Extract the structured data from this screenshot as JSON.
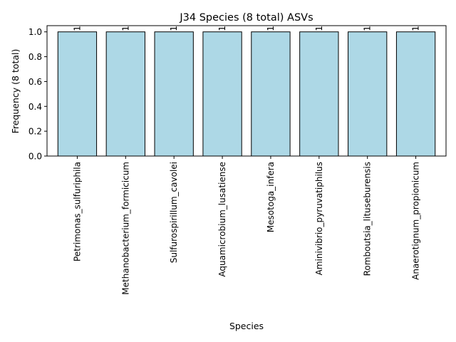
{
  "chart_data": {
    "type": "bar",
    "title": "J34 Species (8 total) ASVs",
    "xlabel": "Species",
    "ylabel": "Frequency (8 total)",
    "categories": [
      "Petrimonas_sulfuriphila",
      "Methanobacterium_formicicum",
      "Sulfurospirillum_cavolei",
      "Aquamicrobium_lusatiense",
      "Mesotoga_infera",
      "Aminivibrio_pyruvatiphilus",
      "Romboutsia_lituseburensis",
      "Anaerotignum_propionicum"
    ],
    "values": [
      1,
      1,
      1,
      1,
      1,
      1,
      1,
      1
    ],
    "data_labels": [
      "1",
      "1",
      "1",
      "1",
      "1",
      "1",
      "1",
      "1"
    ],
    "ylim": [
      0,
      1.05
    ],
    "yticks": [
      "0.0",
      "0.2",
      "0.4",
      "0.6",
      "0.8",
      "1.0"
    ],
    "grid": false,
    "bar_color": "#add8e6",
    "edge_color": "#000000"
  }
}
